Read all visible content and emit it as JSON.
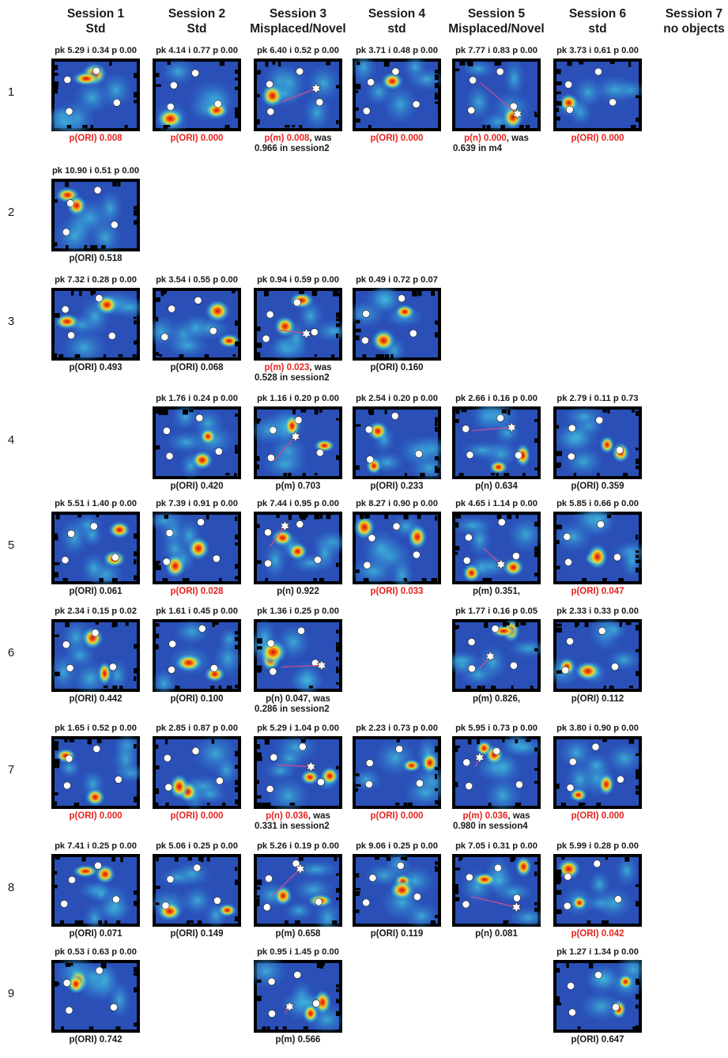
{
  "columns": [
    {
      "line1": "Session 1",
      "line2": "Std"
    },
    {
      "line1": "Session 2",
      "line2": "Std"
    },
    {
      "line1": "Session 3",
      "line2": "Misplaced/Novel"
    },
    {
      "line1": "Session 4",
      "line2": "std"
    },
    {
      "line1": "Session 5",
      "line2": "Misplaced/Novel"
    },
    {
      "line1": "Session 6",
      "line2": "std"
    },
    {
      "line1": "Session 7",
      "line2": "no objects"
    }
  ],
  "rows": [
    {
      "label": "1",
      "cells": [
        {
          "col": 0,
          "stats": "pk 5.29 i 0.34 p 0.00",
          "caption": "p(ORI) 0.008",
          "red": true,
          "stat": "p(ORI)",
          "p_value": 0.008
        },
        {
          "col": 1,
          "stats": "pk 4.14 i 0.77 p 0.00",
          "caption": "p(ORI) 0.000",
          "red": true,
          "stat": "p(ORI)",
          "p_value": 0.0
        },
        {
          "col": 2,
          "stats": "pk 6.40 i 0.52 p 0.00",
          "caption": "p(m) 0.008",
          "caption_tail_same": ", was",
          "caption2": "0.966 in session2",
          "red": true,
          "stat": "p(m)",
          "p_value": 0.008
        },
        {
          "col": 3,
          "stats": "pk 3.71 i 0.48 p 0.00",
          "caption": "p(ORI) 0.000",
          "red": true,
          "stat": "p(ORI)",
          "p_value": 0.0
        },
        {
          "col": 4,
          "stats": "pk 7.77 i 0.83 p 0.00",
          "caption": "p(n) 0.000",
          "caption_tail_same": ", was",
          "caption2": "0.639 in m4",
          "red": true,
          "stat": "p(n)",
          "p_value": 0.0
        },
        {
          "col": 5,
          "stats": "pk 3.73 i 0.61 p 0.00",
          "caption": "p(ORI) 0.000",
          "red": true,
          "stat": "p(ORI)",
          "p_value": 0.0
        }
      ]
    },
    {
      "label": "2",
      "cells": [
        {
          "col": 0,
          "stats": "pk 10.90 i 0.51 p 0.00",
          "caption": "p(ORI) 0.518",
          "red": false,
          "stat": "p(ORI)",
          "p_value": 0.518
        }
      ]
    },
    {
      "label": "3",
      "cells": [
        {
          "col": 0,
          "stats": "pk 7.32 i 0.28 p 0.00",
          "caption": "p(ORI) 0.493",
          "red": false,
          "stat": "p(ORI)",
          "p_value": 0.493
        },
        {
          "col": 1,
          "stats": "pk 3.54 i 0.55 p 0.00",
          "caption": "p(ORI) 0.068",
          "red": false,
          "stat": "p(ORI)",
          "p_value": 0.068
        },
        {
          "col": 2,
          "stats": "pk 0.94 i 0.59 p 0.00",
          "caption": "p(m) 0.023",
          "caption_tail_same": ", was",
          "caption2": "0.528 in session2",
          "red": true,
          "stat": "p(m)",
          "p_value": 0.023
        },
        {
          "col": 3,
          "stats": "pk 0.49 i 0.72 p 0.07",
          "caption": "p(ORI) 0.160",
          "red": false,
          "stat": "p(ORI)",
          "p_value": 0.16
        }
      ]
    },
    {
      "label": "4",
      "cells": [
        {
          "col": 1,
          "stats": "pk 1.76 i 0.24 p 0.00",
          "caption": "p(ORI) 0.420",
          "red": false,
          "stat": "p(ORI)",
          "p_value": 0.42
        },
        {
          "col": 2,
          "stats": "pk 1.16 i 0.20 p 0.00",
          "caption": "p(m) 0.703",
          "red": false,
          "stat": "p(m)",
          "p_value": 0.703
        },
        {
          "col": 3,
          "stats": "pk 2.54 i 0.20 p 0.00",
          "caption": "p(ORI) 0.233",
          "red": false,
          "stat": "p(ORI)",
          "p_value": 0.233
        },
        {
          "col": 4,
          "stats": "pk 2.66 i 0.16 p 0.00",
          "caption": "p(n) 0.634",
          "red": false,
          "stat": "p(n)",
          "p_value": 0.634
        },
        {
          "col": 5,
          "stats": "pk 2.79 i 0.11 p 0.73",
          "caption": "p(ORI) 0.359",
          "red": false,
          "stat": "p(ORI)",
          "p_value": 0.359
        }
      ]
    },
    {
      "label": "5",
      "cells": [
        {
          "col": 0,
          "stats": "pk 5.51 i 1.40 p 0.00",
          "caption": "p(ORI) 0.061",
          "red": false,
          "stat": "p(ORI)",
          "p_value": 0.061
        },
        {
          "col": 1,
          "stats": "pk 7.39 i 0.91 p 0.00",
          "caption": "p(ORI) 0.028",
          "red": true,
          "stat": "p(ORI)",
          "p_value": 0.028
        },
        {
          "col": 2,
          "stats": "pk 7.44 i 0.95 p 0.00",
          "caption": "p(n) 0.922",
          "red": false,
          "stat": "p(n)",
          "p_value": 0.922
        },
        {
          "col": 3,
          "stats": "pk 8.27 i 0.90 p 0.00",
          "caption": "p(ORI) 0.033",
          "red": true,
          "stat": "p(ORI)",
          "p_value": 0.033
        },
        {
          "col": 4,
          "stats": "pk 4.65 i 1.14 p 0.00",
          "caption": "p(m) 0.351,",
          "red": false,
          "stat": "p(m)",
          "p_value": 0.351
        },
        {
          "col": 5,
          "stats": "pk 5.85 i 0.66 p 0.00",
          "caption": "p(ORI) 0.047",
          "red": true,
          "stat": "p(ORI)",
          "p_value": 0.047
        }
      ]
    },
    {
      "label": "6",
      "cells": [
        {
          "col": 0,
          "stats": "pk 2.34 i 0.15 p 0.02",
          "caption": "p(ORI) 0.442",
          "red": false,
          "stat": "p(ORI)",
          "p_value": 0.442
        },
        {
          "col": 1,
          "stats": "pk 1.61 i 0.45 p 0.00",
          "caption": "p(ORI) 0.100",
          "red": false,
          "stat": "p(ORI)",
          "p_value": 0.1
        },
        {
          "col": 2,
          "stats": "pk 1.36 i 0.25 p 0.00",
          "caption": "p(n) 0.047, was",
          "caption2": "0.286 in session2",
          "red": false,
          "stat": "p(n)",
          "p_value": 0.047
        },
        {
          "col": 4,
          "stats": "pk 1.77 i 0.16 p 0.05",
          "caption": "p(m) 0.826,",
          "red": false,
          "stat": "p(m)",
          "p_value": 0.826
        },
        {
          "col": 5,
          "stats": "pk 2.33 i 0.33 p 0.00",
          "caption": "p(ORI) 0.112",
          "red": false,
          "stat": "p(ORI)",
          "p_value": 0.112
        }
      ]
    },
    {
      "label": "7",
      "cells": [
        {
          "col": 0,
          "stats": "pk 1.65 i 0.52 p 0.00",
          "caption": "p(ORI) 0.000",
          "red": true,
          "stat": "p(ORI)",
          "p_value": 0.0
        },
        {
          "col": 1,
          "stats": "pk 2.85 i 0.87 p 0.00",
          "caption": "p(ORI) 0.000",
          "red": true,
          "stat": "p(ORI)",
          "p_value": 0.0
        },
        {
          "col": 2,
          "stats": "pk 5.29 i 1.04 p 0.00",
          "caption": "p(n) 0.036",
          "caption_tail_same": ", was",
          "caption2": "0.331 in session2",
          "red": true,
          "stat": "p(n)",
          "p_value": 0.036
        },
        {
          "col": 3,
          "stats": "pk 2.23 i 0.73 p 0.00",
          "caption": "p(ORI) 0.000",
          "red": true,
          "stat": "p(ORI)",
          "p_value": 0.0
        },
        {
          "col": 4,
          "stats": "pk 5.95 i 0.73 p 0.00",
          "caption": "p(m) 0.036",
          "caption_tail_same": ", was",
          "caption2": "0.980 in session4",
          "red": true,
          "stat": "p(m)",
          "p_value": 0.036
        },
        {
          "col": 5,
          "stats": "pk 3.80 i 0.90 p 0.00",
          "caption": "p(ORI) 0.000",
          "red": true,
          "stat": "p(ORI)",
          "p_value": 0.0
        }
      ]
    },
    {
      "label": "8",
      "cells": [
        {
          "col": 0,
          "stats": "pk 7.41 i 0.25 p 0.00",
          "caption": "p(ORI) 0.071",
          "red": false,
          "stat": "p(ORI)",
          "p_value": 0.071
        },
        {
          "col": 1,
          "stats": "pk 5.06 i 0.25 p 0.00",
          "caption": "p(ORI) 0.149",
          "red": false,
          "stat": "p(ORI)",
          "p_value": 0.149
        },
        {
          "col": 2,
          "stats": "pk 5.26 i 0.19 p 0.00",
          "caption": "p(m) 0.658",
          "red": false,
          "stat": "p(m)",
          "p_value": 0.658
        },
        {
          "col": 3,
          "stats": "pk 9.06 i 0.25 p 0.00",
          "caption": "p(ORI) 0.119",
          "red": false,
          "stat": "p(ORI)",
          "p_value": 0.119
        },
        {
          "col": 4,
          "stats": "pk 7.05 i 0.31 p 0.00",
          "caption": "p(n) 0.081",
          "red": false,
          "stat": "p(n)",
          "p_value": 0.081
        },
        {
          "col": 5,
          "stats": "pk 5.99 i 0.28 p 0.00",
          "caption": "p(ORI) 0.042",
          "red": true,
          "stat": "p(ORI)",
          "p_value": 0.042
        }
      ]
    },
    {
      "label": "9",
      "cells": [
        {
          "col": 0,
          "stats": "pk 0.53 i 0.63 p 0.00",
          "caption": "p(ORI) 0.742",
          "red": false,
          "stat": "p(ORI)",
          "p_value": 0.742
        },
        {
          "col": 2,
          "stats": "pk 0.95 i 1.45 p 0.00",
          "caption": "p(m) 0.566",
          "red": false,
          "stat": "p(m)",
          "p_value": 0.566
        },
        {
          "col": 5,
          "stats": "pk 1.27 i 1.34 p 0.00",
          "caption": "p(ORI) 0.647",
          "red": false,
          "stat": "p(ORI)",
          "p_value": 0.647
        }
      ]
    }
  ],
  "colors": {
    "significant": "#e8231e",
    "text": "#1a1a1a",
    "heatmap_low": "#1f3f9c",
    "heatmap_high": "#d31414",
    "trajectory": "#d94b8a",
    "object_marker": "#ffffff",
    "empty_bin": "#000000"
  },
  "icons": {
    "object": "white-circle",
    "moved_object": "white-star",
    "displacement": "pink-line"
  }
}
